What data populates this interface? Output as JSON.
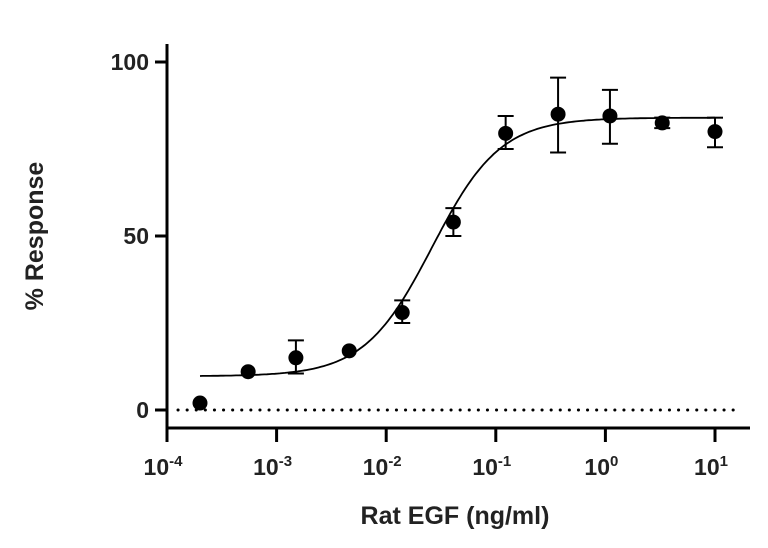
{
  "chart_data": {
    "type": "scatter",
    "xlabel": "Rat EGF (ng/ml)",
    "ylabel": "% Response",
    "x_scale": "log",
    "xlim": [
      0.0001,
      20
    ],
    "ylim": [
      -5,
      105
    ],
    "x_ticks": [
      {
        "value": 0.0001,
        "base": "10",
        "exp": "-4"
      },
      {
        "value": 0.001,
        "base": "10",
        "exp": "-3"
      },
      {
        "value": 0.01,
        "base": "10",
        "exp": "-2"
      },
      {
        "value": 0.1,
        "base": "10",
        "exp": "-1"
      },
      {
        "value": 1,
        "base": "10",
        "exp": "0"
      },
      {
        "value": 10,
        "base": "10",
        "exp": "1"
      }
    ],
    "y_ticks": [
      "0",
      "50",
      "100"
    ],
    "reference_line": {
      "y": 0,
      "style": "dotted"
    },
    "points": [
      {
        "x": 0.0002,
        "y": 2,
        "err_low": 2,
        "err_high": 2
      },
      {
        "x": 0.00055,
        "y": 11,
        "err_low": 11,
        "err_high": 11
      },
      {
        "x": 0.0015,
        "y": 15,
        "err_low": 10.5,
        "err_high": 20
      },
      {
        "x": 0.0046,
        "y": 17,
        "err_low": 17,
        "err_high": 17
      },
      {
        "x": 0.014,
        "y": 28,
        "err_low": 25,
        "err_high": 31.5
      },
      {
        "x": 0.041,
        "y": 54,
        "err_low": 50,
        "err_high": 58
      },
      {
        "x": 0.123,
        "y": 79.5,
        "err_low": 75,
        "err_high": 84.5
      },
      {
        "x": 0.37,
        "y": 85,
        "err_low": 74,
        "err_high": 95.5
      },
      {
        "x": 1.1,
        "y": 84.5,
        "err_low": 76.5,
        "err_high": 92
      },
      {
        "x": 3.3,
        "y": 82.5,
        "err_low": 81,
        "err_high": 84
      },
      {
        "x": 10,
        "y": 80,
        "err_low": 75.5,
        "err_high": 84
      }
    ],
    "fit": {
      "model": "4PL",
      "bottom": 9.7,
      "top": 84,
      "log_ec50": -1.58,
      "hill": 1.4,
      "x_start": 0.0002,
      "x_end": 10
    },
    "grid": false,
    "legend": "none",
    "colors": {
      "marker": "#000000",
      "line": "#000000",
      "axis": "#000000"
    }
  }
}
